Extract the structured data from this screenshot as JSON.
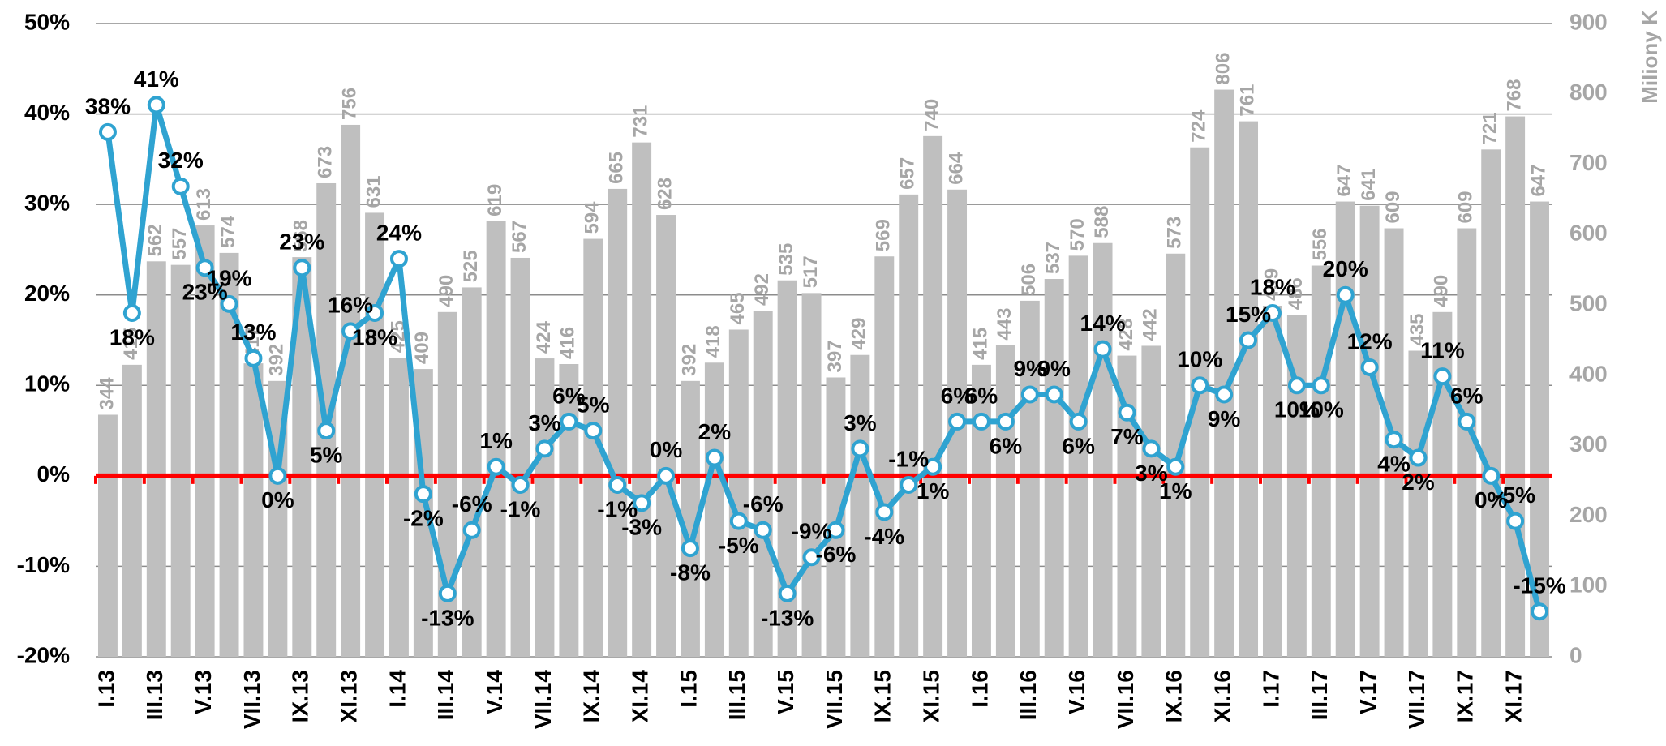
{
  "chart_data": {
    "type": "combo",
    "y2label": "Miliony K",
    "categories": [
      "I.13",
      null,
      "III.13",
      null,
      "V.13",
      null,
      "VII.13",
      null,
      "IX.13",
      null,
      "XI.13",
      null,
      "I.14",
      null,
      "III.14",
      null,
      "V.14",
      null,
      "VII.14",
      null,
      "IX.14",
      null,
      "XI.14",
      null,
      "I.15",
      null,
      "III.15",
      null,
      "V.15",
      null,
      "VII.15",
      null,
      "IX.15",
      null,
      "XI.15",
      null,
      "I.16",
      null,
      "III.16",
      null,
      "V.16",
      null,
      "VII.16",
      null,
      "IX.16",
      null,
      "XI.16",
      null,
      "I.17",
      null,
      "III.17",
      null,
      "V.17",
      null,
      "VII.17",
      null,
      "IX.17",
      null,
      "XI.17",
      null
    ],
    "series": [
      {
        "type": "bar",
        "axis": "y2",
        "color": "#bfbfbf",
        "label_color": "#a6a6a6",
        "values": [
          344,
          415,
          562,
          557,
          613,
          574,
          417,
          392,
          568,
          673,
          756,
          631,
          425,
          409,
          490,
          525,
          619,
          567,
          424,
          416,
          594,
          665,
          731,
          628,
          392,
          418,
          465,
          492,
          535,
          517,
          397,
          429,
          569,
          657,
          740,
          664,
          415,
          443,
          506,
          537,
          570,
          588,
          428,
          442,
          573,
          724,
          806,
          761,
          499,
          486,
          556,
          647,
          641,
          609,
          435,
          490,
          609,
          721,
          768,
          647
        ]
      },
      {
        "type": "line",
        "axis": "y",
        "color": "#2fa3d1",
        "values": [
          38,
          18,
          41,
          32,
          23,
          19,
          13,
          0,
          23,
          5,
          16,
          18,
          24,
          -2,
          -13,
          -6,
          1,
          -1,
          3,
          6,
          5,
          -1,
          -3,
          0,
          -8,
          2,
          -5,
          -6,
          -13,
          -9,
          -6,
          3,
          -4,
          -1,
          1,
          6,
          6,
          6,
          9,
          9,
          6,
          14,
          7,
          3,
          1,
          10,
          9,
          15,
          18,
          10,
          10,
          20,
          12,
          4,
          2,
          11,
          6,
          0,
          -5,
          -15
        ],
        "value_labels": [
          "38%",
          "18%",
          "41%",
          "32%",
          "23%",
          "19%",
          "13%",
          "0%",
          "23%",
          "5%",
          "16%",
          "18%",
          "24%",
          "-2%",
          "-13%",
          "-6%",
          "1%",
          "-1%",
          "3%",
          "6%",
          "5%",
          "-1%",
          "-3%",
          "0%",
          "-8%",
          "2%",
          "-5%",
          "-6%",
          "-13%",
          "-9%",
          "-6%",
          "3%",
          "-4%",
          "-1%",
          "1%",
          "6%",
          "6%",
          "6%",
          "9%",
          "9%",
          "6%",
          "14%",
          "7%",
          "3%",
          "1%",
          "10%",
          "9%",
          "15%",
          "18%",
          "10%",
          "10%",
          "20%",
          "12%",
          "4%",
          "2%",
          "11%",
          "6%",
          "0%",
          "-5%",
          "-15%"
        ]
      }
    ],
    "ylim": [
      -20,
      50
    ],
    "yticks": [
      {
        "value": -20,
        "label": "-20%"
      },
      {
        "value": -10,
        "label": "-10%"
      },
      {
        "value": 0,
        "label": "0%"
      },
      {
        "value": 10,
        "label": "10%"
      },
      {
        "value": 20,
        "label": "20%"
      },
      {
        "value": 30,
        "label": "30%"
      },
      {
        "value": 40,
        "label": "40%"
      },
      {
        "value": 50,
        "label": "50%"
      }
    ],
    "y2lim": [
      0,
      900
    ],
    "y2ticks": [
      0,
      100,
      200,
      300,
      400,
      500,
      600,
      700,
      800,
      900
    ],
    "grid": true,
    "ref_line": {
      "value": 0,
      "color": "#ff0000"
    }
  }
}
